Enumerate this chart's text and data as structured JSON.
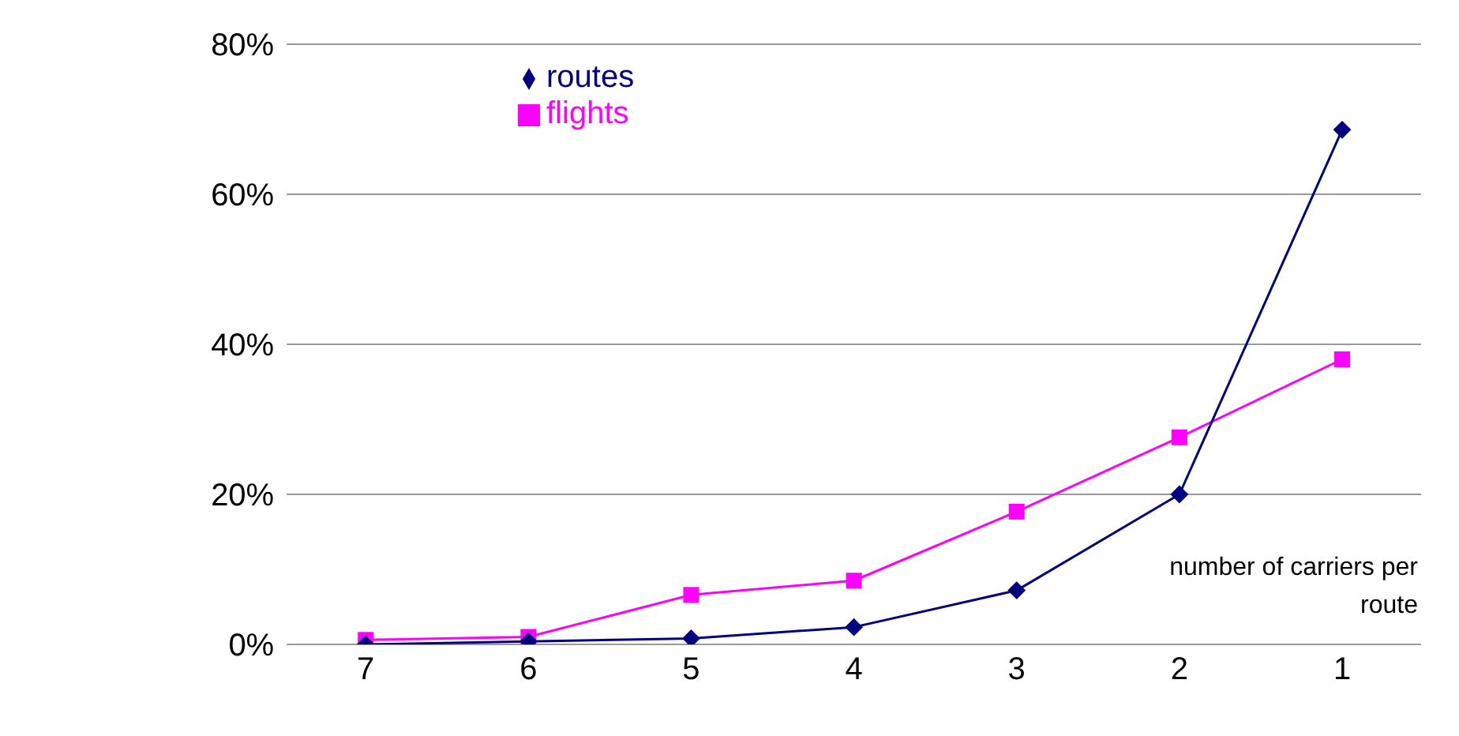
{
  "chart_data": {
    "type": "line",
    "xlabel": "number of carriers per route",
    "categories": [
      "7",
      "6",
      "5",
      "4",
      "3",
      "2",
      "1"
    ],
    "series": [
      {
        "name": "routes",
        "color": "#000080",
        "marker": "diamond",
        "values": [
          0,
          0.4,
          0.8,
          2.3,
          7.2,
          20,
          68.6
        ]
      },
      {
        "name": "flights",
        "color": "#ff00ff",
        "marker": "square",
        "values": [
          0.6,
          1,
          6.6,
          8.5,
          17.7,
          27.6,
          38
        ]
      }
    ],
    "ylim": [
      0,
      80
    ],
    "yticks": [
      {
        "value": 0,
        "label": "0%"
      },
      {
        "value": 20,
        "label": "20%"
      },
      {
        "value": 40,
        "label": "40%"
      },
      {
        "value": 60,
        "label": "60%"
      },
      {
        "value": 80,
        "label": "80%"
      }
    ],
    "grid": "y",
    "legend": "top",
    "line_style": "solid"
  }
}
